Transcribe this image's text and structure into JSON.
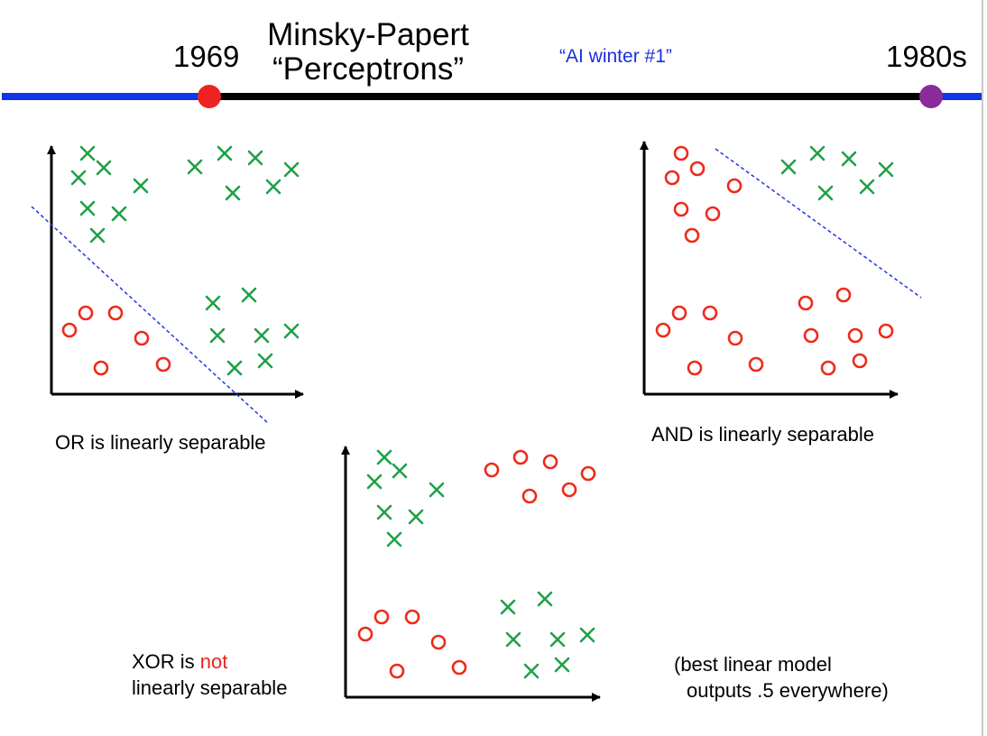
{
  "timeline": {
    "title_line1": "Minsky-Papert",
    "title_line2": "“Perceptrons”",
    "start_label": "1969",
    "end_label": "1980s",
    "period_label": "“AI winter #1”",
    "line_colors": {
      "outer": "#1034e8",
      "inner": "#000000"
    },
    "marker_colors": {
      "start": "#ee2222",
      "end": "#8a2b9a"
    }
  },
  "panels": {
    "or": {
      "caption": "OR is linearly separable"
    },
    "and": {
      "caption": "AND is linearly separable"
    },
    "xor": {
      "caption_prefix": "XOR is ",
      "caption_highlight": "not",
      "caption_line2": "linearly separable",
      "note_line1": "(best linear model",
      "note_line2": "outputs .5 everywhere)"
    }
  },
  "colors": {
    "cross": "#1fa049",
    "circle": "#ee2a1a",
    "separator": "#2436e0",
    "highlight": "#ee2222"
  }
}
